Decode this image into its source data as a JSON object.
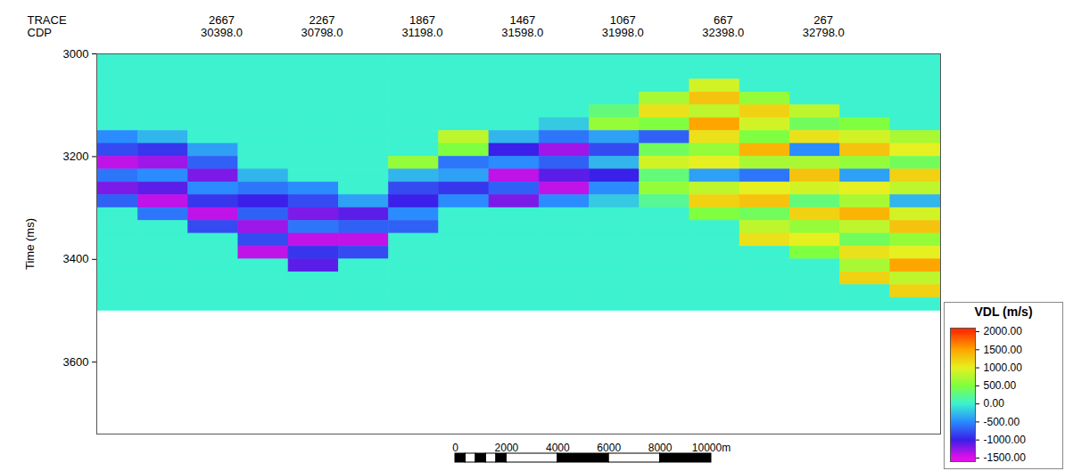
{
  "chart_data": {
    "type": "heatmap",
    "xlabel": "TRACE",
    "x2label": "CDP",
    "ylabel": "Time (ms)",
    "xlim": [
      3165,
      -200
    ],
    "xticks": [
      2667,
      2267,
      1867,
      1467,
      1067,
      667,
      267
    ],
    "x2lim": [
      29900,
      33265
    ],
    "x2ticks": [
      {
        "value": 30398,
        "label": "30398.0"
      },
      {
        "value": 30798,
        "label": "30798.0"
      },
      {
        "value": 31198,
        "label": "31198.0"
      },
      {
        "value": 31598,
        "label": "31598.0"
      },
      {
        "value": 31998,
        "label": "31998.0"
      },
      {
        "value": 32398,
        "label": "32398.0"
      },
      {
        "value": 32798,
        "label": "32798.0"
      }
    ],
    "ylim": [
      3000,
      3740
    ],
    "yticks": [
      3000,
      3200,
      3400,
      3600
    ],
    "x": [
      3100,
      2900,
      2700,
      2500,
      2300,
      2100,
      1900,
      1700,
      1500,
      1300,
      1100,
      900,
      700,
      500,
      300,
      100,
      -100
    ],
    "y": [
      3012.5,
      3037.5,
      3062.5,
      3087.5,
      3112.5,
      3137.5,
      3162.5,
      3187.5,
      3212.5,
      3237.5,
      3262.5,
      3287.5,
      3312.5,
      3337.5,
      3362.5,
      3387.5,
      3412.5,
      3437.5,
      3462.5,
      3487.5
    ],
    "z": [
      [
        0,
        0,
        0,
        0,
        0,
        0,
        -500,
        -800,
        -1400,
        -600,
        -1200,
        -700,
        0,
        0,
        0,
        0,
        0,
        0,
        0,
        0
      ],
      [
        0,
        0,
        0,
        0,
        0,
        0,
        -300,
        -900,
        -1300,
        -500,
        -1100,
        -1400,
        -600,
        0,
        0,
        0,
        0,
        0,
        0,
        0
      ],
      [
        0,
        0,
        0,
        0,
        0,
        0,
        0,
        -400,
        -700,
        -1200,
        -500,
        -900,
        -1400,
        -800,
        0,
        0,
        0,
        0,
        0,
        0
      ],
      [
        0,
        0,
        0,
        0,
        0,
        0,
        0,
        0,
        0,
        -300,
        -600,
        -1000,
        -700,
        -1300,
        -800,
        -1400,
        0,
        0,
        0,
        0
      ],
      [
        0,
        0,
        0,
        0,
        0,
        0,
        0,
        0,
        0,
        0,
        -500,
        -800,
        -1200,
        -600,
        -1400,
        -900,
        -1100,
        0,
        0,
        0
      ],
      [
        0,
        0,
        0,
        0,
        0,
        0,
        0,
        0,
        0,
        0,
        0,
        -400,
        -1100,
        -700,
        -1400,
        -800,
        0,
        0,
        0,
        0
      ],
      [
        0,
        0,
        0,
        0,
        0,
        0,
        0,
        0,
        600,
        -300,
        -800,
        -1000,
        -500,
        -700,
        0,
        0,
        0,
        0,
        0,
        0
      ],
      [
        0,
        0,
        0,
        0,
        0,
        0,
        800,
        500,
        -600,
        -400,
        -900,
        -500,
        0,
        0,
        0,
        0,
        0,
        0,
        0,
        0
      ],
      [
        0,
        0,
        0,
        0,
        0,
        0,
        -300,
        -1000,
        -500,
        -1400,
        -700,
        -1200,
        0,
        0,
        0,
        0,
        0,
        0,
        0,
        0
      ],
      [
        0,
        0,
        0,
        0,
        0,
        -200,
        -600,
        -1300,
        -700,
        -1100,
        -1400,
        -500,
        0,
        0,
        0,
        0,
        0,
        0,
        0,
        0
      ],
      [
        0,
        0,
        0,
        0,
        300,
        600,
        -400,
        -800,
        -300,
        -1000,
        -500,
        -200,
        0,
        0,
        0,
        0,
        0,
        0,
        0,
        0
      ],
      [
        0,
        0,
        0,
        700,
        1100,
        500,
        -700,
        400,
        900,
        300,
        600,
        200,
        0,
        0,
        0,
        0,
        0,
        0,
        0,
        0
      ],
      [
        0,
        0,
        900,
        1300,
        800,
        1500,
        1100,
        600,
        1000,
        -400,
        800,
        1200,
        500,
        0,
        0,
        0,
        0,
        0,
        0,
        0
      ],
      [
        0,
        0,
        0,
        600,
        1200,
        900,
        500,
        1400,
        700,
        -600,
        1000,
        1300,
        400,
        800,
        1100,
        0,
        0,
        0,
        0,
        0
      ],
      [
        0,
        0,
        0,
        0,
        800,
        400,
        1100,
        -500,
        700,
        1300,
        900,
        300,
        1200,
        600,
        1000,
        500,
        0,
        0,
        0,
        0
      ],
      [
        0,
        0,
        0,
        0,
        0,
        500,
        900,
        1300,
        600,
        -400,
        1000,
        700,
        1400,
        800,
        400,
        1100,
        700,
        1200,
        0,
        0
      ],
      [
        0,
        0,
        0,
        0,
        0,
        0,
        700,
        1000,
        400,
        1200,
        800,
        -300,
        900,
        1300,
        600,
        1000,
        1500,
        800,
        1200,
        0
      ]
    ],
    "colorbar": {
      "title": "VDL (m/s)",
      "range": [
        -1600,
        2100
      ],
      "ticks": [
        {
          "value": -1500,
          "label": "-1500.00"
        },
        {
          "value": -1000,
          "label": "-1000.00"
        },
        {
          "value": -500,
          "label": "-500.00"
        },
        {
          "value": 0,
          "label": "0.00"
        },
        {
          "value": 500,
          "label": "500.00"
        },
        {
          "value": 1000,
          "label": "1000.00"
        },
        {
          "value": 1500,
          "label": "1500.00"
        },
        {
          "value": 2000,
          "label": "2000.00"
        }
      ],
      "colors": [
        "#e010e8",
        "#3a20e8",
        "#2a8cff",
        "#3cf2cf",
        "#7fff3f",
        "#e6f020",
        "#ffa500",
        "#ff3300"
      ]
    },
    "scale_bar": {
      "ticks": [
        0,
        2000,
        4000,
        6000,
        8000,
        {
          "value": 10000,
          "label": "10000m"
        }
      ]
    }
  }
}
